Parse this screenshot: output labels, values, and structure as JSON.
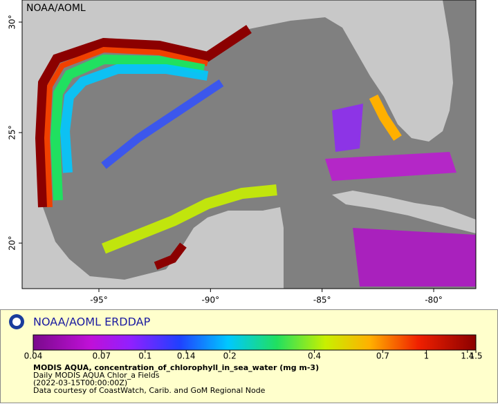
{
  "map": {
    "watermark": "NOAA/AOML",
    "xlim": [
      -98.44,
      -78.11
    ],
    "ylim": [
      17.94,
      31
    ],
    "xticks": [
      {
        "value": -95,
        "label": "-95°"
      },
      {
        "value": -90,
        "label": "-90°"
      },
      {
        "value": -85,
        "label": "-85°"
      },
      {
        "value": -80,
        "label": "-80°"
      }
    ],
    "yticks": [
      {
        "value": 20,
        "label": "20°"
      },
      {
        "value": 25,
        "label": "25°"
      },
      {
        "value": 30,
        "label": "30°"
      }
    ]
  },
  "footer": {
    "title": "NOAA/AOML ERDDAP",
    "colorbar": {
      "log": true,
      "lim": [
        0.04,
        1.5
      ],
      "ticks": [
        0.04,
        0.07,
        0.1,
        0.14,
        0.2,
        0.4,
        0.7,
        1,
        1.4,
        1.5
      ]
    },
    "variable": "MODIS AQUA, concentration_of_chlorophyll_in_sea_water (mg m-3)",
    "lines": [
      "Daily MODIS AQUA Chlor_a Fields",
      "(2022-03-15T00:00:00Z)",
      "Data courtesy of CoastWatch, Carib. and GoM Regional Node"
    ]
  }
}
